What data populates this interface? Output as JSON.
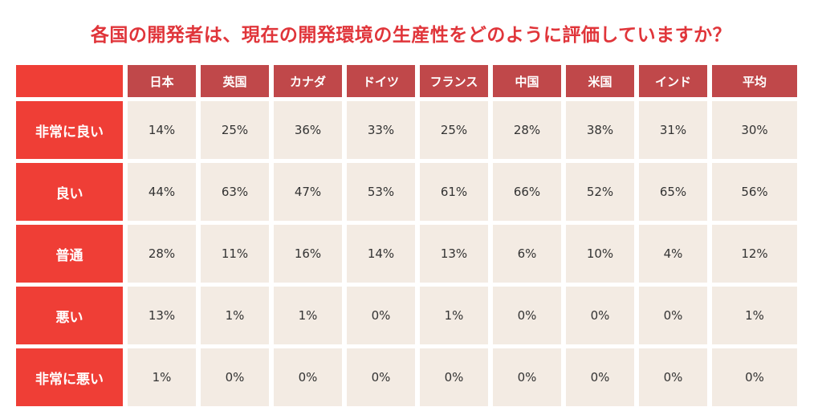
{
  "title": "各国の開発者は、現在の開発環境の生産性をどのように評価していますか？",
  "colors": {
    "title": "#e0353a",
    "row_header_bg": "#ef3e36",
    "column_header_bg": "#c0484a",
    "cell_bg": "#f3ebe3",
    "cell_text": "#333333"
  },
  "chart_data": {
    "type": "table",
    "title": "各国の開発者は、現在の開発環境の生産性をどのように評価していますか？",
    "columns": [
      "日本",
      "英国",
      "カナダ",
      "ドイツ",
      "フランス",
      "中国",
      "米国",
      "インド",
      "平均"
    ],
    "rows": [
      {
        "label": "非常に良い",
        "values": [
          "14%",
          "25%",
          "36%",
          "33%",
          "25%",
          "28%",
          "38%",
          "31%",
          "30%"
        ]
      },
      {
        "label": "良い",
        "values": [
          "44%",
          "63%",
          "47%",
          "53%",
          "61%",
          "66%",
          "52%",
          "65%",
          "56%"
        ]
      },
      {
        "label": "普通",
        "values": [
          "28%",
          "11%",
          "16%",
          "14%",
          "13%",
          "6%",
          "10%",
          "4%",
          "12%"
        ]
      },
      {
        "label": "悪い",
        "values": [
          "13%",
          "1%",
          "1%",
          "0%",
          "1%",
          "0%",
          "0%",
          "0%",
          "1%"
        ]
      },
      {
        "label": "非常に悪い",
        "values": [
          "1%",
          "0%",
          "0%",
          "0%",
          "0%",
          "0%",
          "0%",
          "0%",
          "0%"
        ]
      }
    ]
  }
}
